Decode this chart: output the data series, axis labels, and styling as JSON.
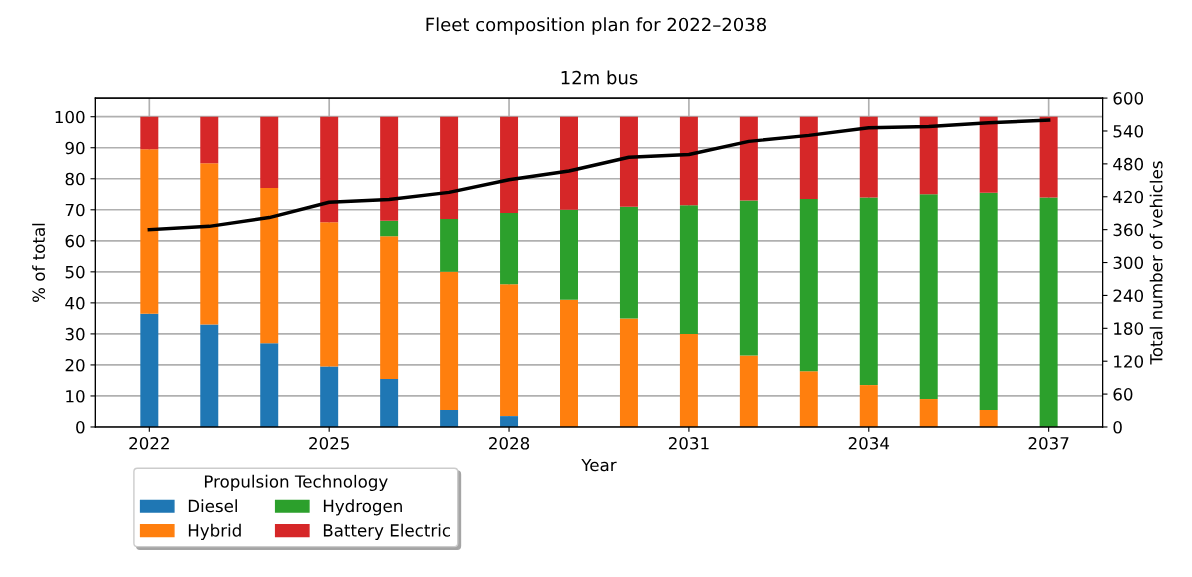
{
  "chart_data": {
    "type": "bar",
    "title": "Fleet composition plan for 2022–2038",
    "subtitle": "12m bus",
    "xlabel": "Year",
    "ylabel": "% of total",
    "y2label": "Total number of vehicles",
    "legend_title": "Propulsion Technology",
    "x": [
      2022,
      2023,
      2024,
      2025,
      2026,
      2027,
      2028,
      2029,
      2030,
      2031,
      2032,
      2033,
      2034,
      2035,
      2036,
      2037
    ],
    "stacked": true,
    "series": [
      {
        "name": "Diesel",
        "color": "#1f77b4",
        "values": [
          36.5,
          33,
          27,
          19.5,
          15.5,
          5.5,
          3.5,
          0,
          0,
          0,
          0,
          0,
          0,
          0,
          0,
          0
        ]
      },
      {
        "name": "Hybrid",
        "color": "#ff7f0e",
        "values": [
          53,
          52,
          50,
          46.5,
          46,
          44.5,
          42.5,
          41,
          35,
          30,
          23,
          18,
          13.5,
          9,
          5.5,
          0
        ]
      },
      {
        "name": "Hydrogen",
        "color": "#2ca02c",
        "values": [
          0,
          0,
          0,
          0,
          5,
          17,
          23,
          29,
          36,
          41.5,
          50,
          55.5,
          60.5,
          66,
          70,
          74
        ]
      },
      {
        "name": "Battery Electric",
        "color": "#d62728",
        "values": [
          10.5,
          15,
          23,
          34,
          33.5,
          33,
          31,
          30,
          29,
          28.5,
          27,
          26.5,
          26,
          25,
          24.5,
          26
        ]
      },
      {
        "type": "line",
        "axis": "y2",
        "color": "#000000",
        "marker": "none",
        "values": [
          360,
          366,
          382,
          410,
          415,
          428,
          451,
          467,
          492,
          497,
          521,
          532,
          546,
          548,
          555,
          560
        ]
      }
    ],
    "xlim": [
      2021.1,
      2037.9
    ],
    "xticks": [
      2022,
      2025,
      2028,
      2031,
      2034,
      2037
    ],
    "ylim": [
      0,
      106
    ],
    "yticks": [
      0,
      10,
      20,
      30,
      40,
      50,
      60,
      70,
      80,
      90,
      100
    ],
    "y2lim": [
      0,
      600
    ],
    "y2ticks": [
      0,
      60,
      120,
      180,
      240,
      300,
      360,
      420,
      480,
      540,
      600
    ],
    "grid": true,
    "legend": "bottom left"
  }
}
